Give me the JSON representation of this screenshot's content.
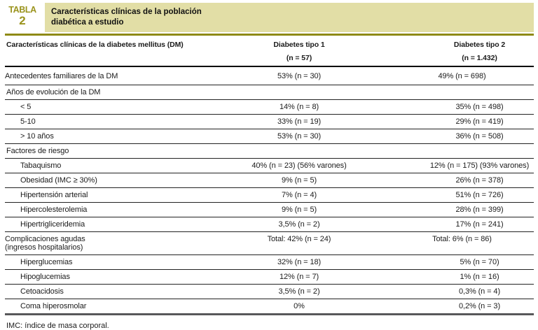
{
  "header": {
    "table_label": "TABLA",
    "table_number": "2",
    "title_line1": "Características clínicas de la población",
    "title_line2": "diabética a estudio"
  },
  "colors": {
    "accent_olive_text": "#9b941e",
    "banner_background": "#e2dea6",
    "olive_rule": "#8f8a16",
    "bottom_rule_gray": "#58585a"
  },
  "table": {
    "col_headers": {
      "col1": "Características clínicas de la diabetes mellitus (DM)",
      "col2_line1": "Diabetes tipo 1",
      "col2_line2": "(n = 57)",
      "col3_line1": "Diabetes tipo 2",
      "col3_line2": "(n = 1.432)"
    },
    "rows": [
      {
        "label": "Antecedentes familiares de la DM",
        "t1": "53% (n = 30)",
        "t2": "49% (n = 698)"
      },
      {
        "label": "Años de evolución de la DM",
        "t1": "",
        "t2": ""
      },
      {
        "label": "< 5",
        "t1": "14% (n = 8)",
        "t2": "35% (n = 498)"
      },
      {
        "label": "5-10",
        "t1": "33% (n = 19)",
        "t2": "29% (n = 419)"
      },
      {
        "label": "> 10 años",
        "t1": "53% (n = 30)",
        "t2": "36% (n = 508)"
      },
      {
        "label": "Factores de riesgo",
        "t1": "",
        "t2": ""
      },
      {
        "label": "Tabaquismo",
        "t1": "40% (n = 23) (56% varones)",
        "t2": "12% (n = 175) (93% varones)"
      },
      {
        "label": "Obesidad (IMC ≥ 30%)",
        "t1": "9% (n = 5)",
        "t2": "26% (n = 378)"
      },
      {
        "label": "Hipertensión arterial",
        "t1": "7% (n = 4)",
        "t2": "51% (n = 726)"
      },
      {
        "label": "Hipercolesterolemia",
        "t1": "9% (n = 5)",
        "t2": "28% (n = 399)"
      },
      {
        "label": "Hipertrigliceridemia",
        "t1": "3,5% (n = 2)",
        "t2": "17% (n = 241)"
      },
      {
        "label": "Complicaciones agudas",
        "label2": "(ingresos hospitalarios)",
        "t1": "Total: 42% (n = 24)",
        "t2": "Total: 6% (n = 86)"
      },
      {
        "label": "Hiperglucemias",
        "t1": "32% (n = 18)",
        "t2": "5% (n = 70)"
      },
      {
        "label": "Hipoglucemias",
        "t1": "12% (n = 7)",
        "t2": "1% (n = 16)"
      },
      {
        "label": "Cetoacidosis",
        "t1": "3,5% (n = 2)",
        "t2": "0,3% (n = 4)"
      },
      {
        "label": "Coma hiperosmolar",
        "t1": "0%",
        "t2": "0,2% (n = 3)"
      }
    ]
  },
  "footnote": "IMC: índice de masa corporal."
}
